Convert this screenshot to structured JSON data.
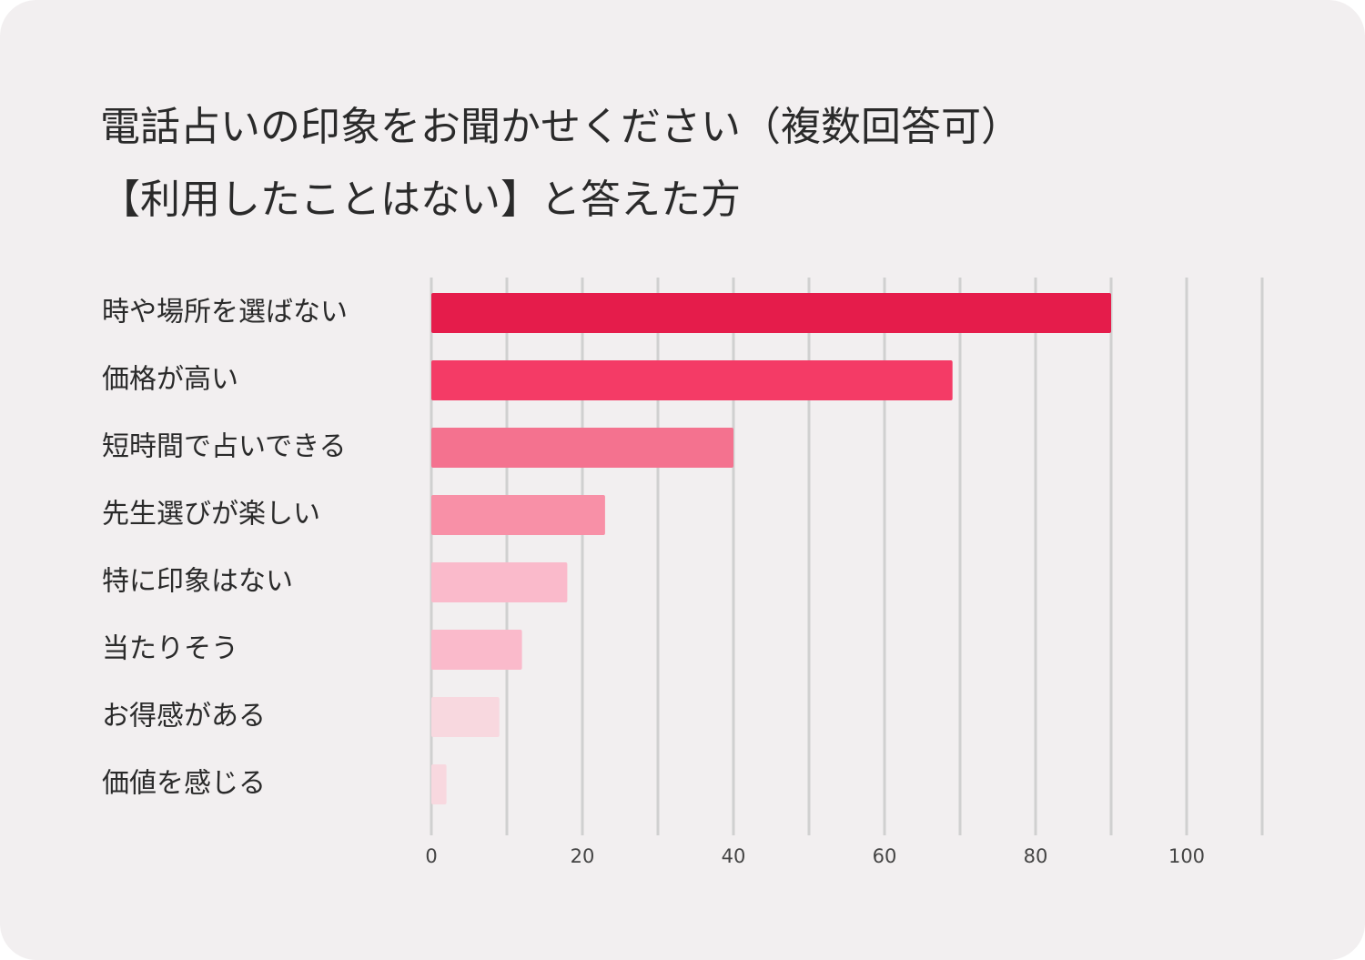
{
  "title": {
    "line1": "電話占いの印象をお聞かせください（複数回答可）",
    "line2": "【利用したことはない】と答えた方"
  },
  "chart_data": {
    "type": "bar",
    "orientation": "horizontal",
    "categories": [
      "時や場所を選ばない",
      "価格が高い",
      "短時間で占いできる",
      "先生選びが楽しい",
      "特に印象はない",
      "当たりそう",
      "お得感がある",
      "価値を感じる"
    ],
    "values": [
      90,
      69,
      40,
      23,
      18,
      12,
      9,
      2
    ],
    "colors": [
      "#e51c4b",
      "#f43b66",
      "#f4728f",
      "#f890a7",
      "#fabacb",
      "#fabacb",
      "#f8d8df",
      "#f8d8df"
    ],
    "xticks": [
      0,
      20,
      40,
      60,
      80,
      100
    ],
    "xlim": [
      0,
      110
    ],
    "grid": true,
    "gridline_color": "#d0d0d0"
  }
}
